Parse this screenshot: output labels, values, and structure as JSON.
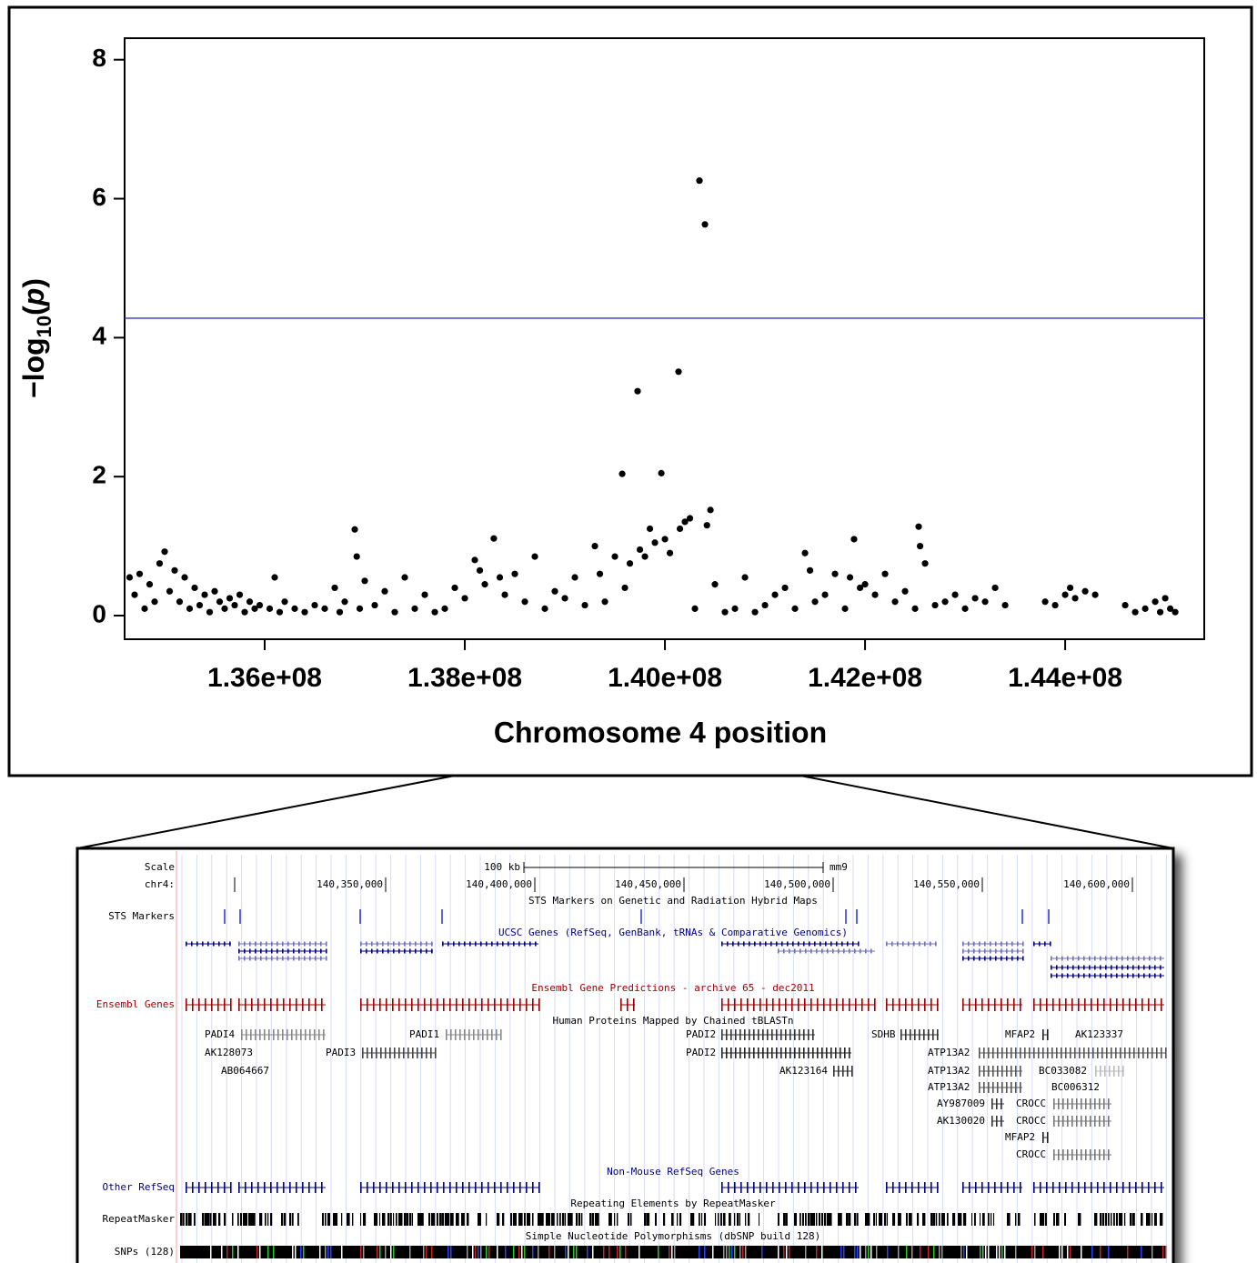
{
  "chart_data": {
    "type": "scatter",
    "xlabel": "Chromosome 4 position",
    "ylabel": [
      "−log",
      "10",
      "(",
      "p",
      ")"
    ],
    "x": [
      134650000,
      134700000,
      134750000,
      134800000,
      134850000,
      134900000,
      134950000,
      135000000,
      135050000,
      135100000,
      135150000,
      135200000,
      135250000,
      135300000,
      135350000,
      135400000,
      135450000,
      135500000,
      135550000,
      135600000,
      135650000,
      135700000,
      135750000,
      135800000,
      135850000,
      135900000,
      135950000,
      136050000,
      136100000,
      136150000,
      136200000,
      136300000,
      136400000,
      136500000,
      136600000,
      136700000,
      136750000,
      136800000,
      136900000,
      136920000,
      136950000,
      137000000,
      137100000,
      137200000,
      137300000,
      137400000,
      137500000,
      137600000,
      137700000,
      137800000,
      137900000,
      138000000,
      138100000,
      138150000,
      138200000,
      138290000,
      138350000,
      138400000,
      138500000,
      138600000,
      138700000,
      138800000,
      138900000,
      139000000,
      139100000,
      139200000,
      139300000,
      139350000,
      139400000,
      139500000,
      139573000,
      139600000,
      139650000,
      139727000,
      139750000,
      139800000,
      139850000,
      139900000,
      139964000,
      140000000,
      140050000,
      140136000,
      140150000,
      140200000,
      140250000,
      140300000,
      140345000,
      140400000,
      140420000,
      140455000,
      140500000,
      140600000,
      140700000,
      140800000,
      140900000,
      141000000,
      141100000,
      141200000,
      141300000,
      141400000,
      141450000,
      141500000,
      141600000,
      141700000,
      141800000,
      141850000,
      141890000,
      141950000,
      142000000,
      142100000,
      142200000,
      142300000,
      142400000,
      142500000,
      142536000,
      142550000,
      142600000,
      142700000,
      142800000,
      142900000,
      143000000,
      143100000,
      143200000,
      143300000,
      143400000,
      143800000,
      143900000,
      144000000,
      144050000,
      144100000,
      144200000,
      144300000,
      144600000,
      144700000,
      144800000,
      144900000,
      144950000,
      145000000,
      145050000,
      145100000
    ],
    "values": [
      0.55,
      0.3,
      0.6,
      0.1,
      0.45,
      0.2,
      0.75,
      0.92,
      0.35,
      0.65,
      0.2,
      0.55,
      0.1,
      0.4,
      0.15,
      0.3,
      0.05,
      0.35,
      0.2,
      0.1,
      0.25,
      0.15,
      0.3,
      0.05,
      0.2,
      0.1,
      0.15,
      0.1,
      0.55,
      0.05,
      0.2,
      0.1,
      0.05,
      0.15,
      0.1,
      0.4,
      0.05,
      0.2,
      1.24,
      0.85,
      0.1,
      0.5,
      0.15,
      0.35,
      0.05,
      0.55,
      0.1,
      0.3,
      0.05,
      0.1,
      0.4,
      0.25,
      0.8,
      0.65,
      0.45,
      1.11,
      0.55,
      0.3,
      0.6,
      0.2,
      0.85,
      0.1,
      0.35,
      0.25,
      0.55,
      0.15,
      1.0,
      0.6,
      0.2,
      0.85,
      2.04,
      0.4,
      0.75,
      3.23,
      0.95,
      0.85,
      1.25,
      1.05,
      2.05,
      1.1,
      0.9,
      3.51,
      1.25,
      1.35,
      1.4,
      0.1,
      6.26,
      5.63,
      1.3,
      1.52,
      0.45,
      0.05,
      0.1,
      0.55,
      0.05,
      0.15,
      0.3,
      0.4,
      0.1,
      0.9,
      0.65,
      0.2,
      0.3,
      0.6,
      0.1,
      0.55,
      1.1,
      0.4,
      0.45,
      0.3,
      0.6,
      0.2,
      0.35,
      0.1,
      1.28,
      1.0,
      0.75,
      0.15,
      0.2,
      0.3,
      0.1,
      0.25,
      0.2,
      0.4,
      0.15,
      0.2,
      0.15,
      0.3,
      0.4,
      0.25,
      0.35,
      0.3,
      0.15,
      0.05,
      0.1,
      0.2,
      0.05,
      0.25,
      0.1,
      0.05
    ],
    "color": "#000000",
    "xlim": [
      134600000,
      145390000
    ],
    "ylim": [
      -0.34,
      8.31
    ],
    "xticks": [
      {
        "value": 136000000,
        "label": "1.36e+08"
      },
      {
        "value": 138000000,
        "label": "1.38e+08"
      },
      {
        "value": 140000000,
        "label": "1.40e+08"
      },
      {
        "value": 142000000,
        "label": "1.42e+08"
      },
      {
        "value": 144000000,
        "label": "1.44e+08"
      }
    ],
    "yticks": [
      0,
      2,
      4,
      6,
      8
    ],
    "hline": 4.28,
    "hline_color": "#3333cc"
  },
  "browser": {
    "scale_label": "Scale",
    "chrom_label": "chr4:",
    "scale_bar": "100 kb",
    "assembly": "mm9",
    "positions": [
      "140,350,000",
      "140,400,000",
      "140,450,000",
      "140,500,000",
      "140,550,000",
      "140,600,000"
    ],
    "tracks": [
      {
        "title": "STS Markers on Genetic and Radiation Hybrid Maps",
        "label": "STS Markers"
      },
      {
        "title": "UCSC Genes (RefSeq, GenBank, tRNAs & Comparative Genomics)"
      },
      {
        "title": "Ensembl Gene Predictions - archive 65 - dec2011",
        "label": "Ensembl Genes"
      },
      {
        "title": "Human Proteins Mapped by Chained tBLASTn"
      },
      {
        "title": "Non-Mouse RefSeq Genes",
        "label": "Other RefSeq"
      },
      {
        "title": "Repeating Elements by RepeatMasker",
        "label": "RepeatMasker"
      },
      {
        "title": "Simple Nucleotide Polymorphisms (dbSNP build 128)",
        "label": "SNPs (128)"
      }
    ],
    "genes": [
      "PADI4",
      "AK128073",
      "AB064667",
      "PADI3",
      "PADI1",
      "PADI2",
      "PADI2",
      "AK123164",
      "SDHB",
      "MFAP2",
      "AK123337",
      "ATP13A2",
      "ATP13A2",
      "ATP13A2",
      "BC033082",
      "BC006312",
      "AY987009",
      "CROCC",
      "AK130020",
      "CROCC",
      "MFAP2",
      "CROCC"
    ]
  }
}
